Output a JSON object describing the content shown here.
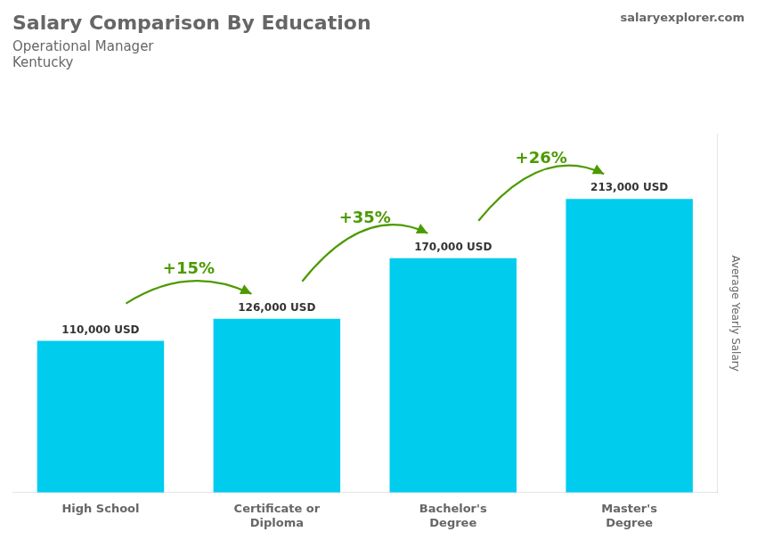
{
  "chart_data": {
    "type": "bar",
    "title": "Salary Comparison By Education",
    "subtitle": [
      "Operational Manager",
      "Kentucky"
    ],
    "watermark": "salaryexplorer.com",
    "ylabel": "Average Yearly Salary",
    "categories": [
      "High School",
      "Certificate or\nDiploma",
      "Bachelor's\nDegree",
      "Master's\nDegree"
    ],
    "values": [
      110000,
      126000,
      170000,
      213000
    ],
    "value_labels": [
      "110,000 USD",
      "126,000 USD",
      "170,000 USD",
      "213,000 USD"
    ],
    "data_labels": true,
    "color": "#00ccee",
    "ylim": [
      0,
      260000
    ],
    "grid": false,
    "tick_labels": "x",
    "annotations": [
      {
        "text": "+15%",
        "from": "High School",
        "to": "Certificate or\nDiploma"
      },
      {
        "text": "+35%",
        "from": "Certificate or\nDiploma",
        "to": "Bachelor's\nDegree"
      },
      {
        "text": "+26%",
        "from": "Bachelor's\nDegree",
        "to": "Master's\nDegree"
      }
    ]
  }
}
